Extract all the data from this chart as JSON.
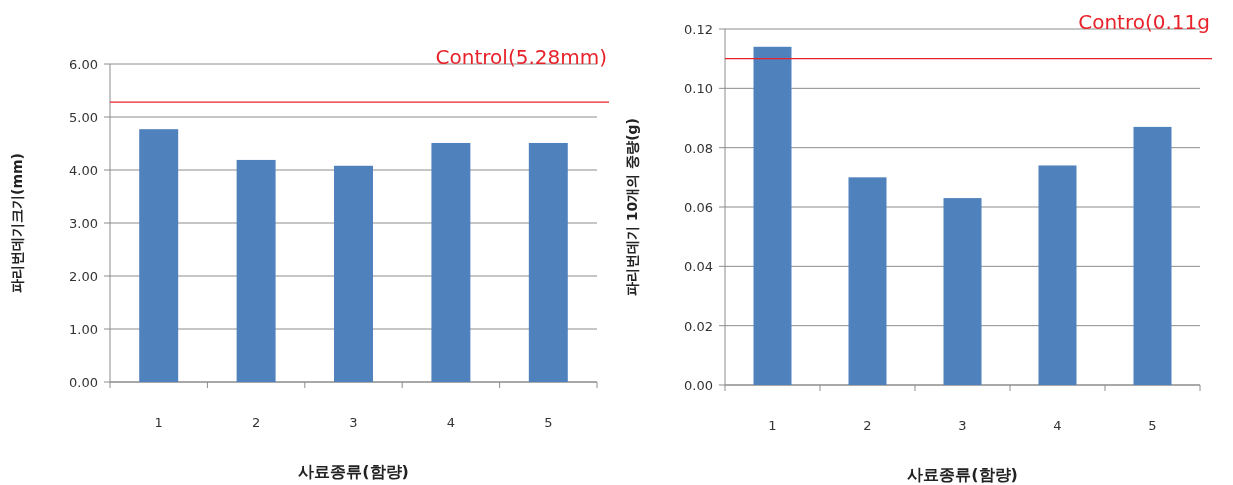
{
  "chart_data": [
    {
      "type": "bar",
      "xlabel": "사료종류(함량)",
      "ylabel": "파리번데기크기(mm)",
      "categories": [
        "1",
        "2",
        "3",
        "4",
        "5"
      ],
      "values": [
        4.77,
        4.19,
        4.08,
        4.51,
        4.51
      ],
      "color": "#4f81bd",
      "ylim": [
        0,
        6
      ],
      "yticks": [
        {
          "value": 0,
          "label": "0.00"
        },
        {
          "value": 1,
          "label": "1.00"
        },
        {
          "value": 2,
          "label": "2.00"
        },
        {
          "value": 3,
          "label": "3.00"
        },
        {
          "value": 4,
          "label": "4.00"
        },
        {
          "value": 5,
          "label": "5.00"
        },
        {
          "value": 6,
          "label": "6.00"
        }
      ],
      "grid": "y",
      "ref_lines": [
        {
          "axis": "y",
          "value": 5.28,
          "label": "Control(5.28mm)",
          "color": "#e8222a"
        }
      ]
    },
    {
      "type": "bar",
      "xlabel": "사료종류(함량)",
      "ylabel": "파리번데기 10개의 중량(g)",
      "categories": [
        "1",
        "2",
        "3",
        "4",
        "5"
      ],
      "values": [
        0.114,
        0.07,
        0.063,
        0.074,
        0.087
      ],
      "color": "#4f81bd",
      "ylim": [
        0,
        0.12
      ],
      "yticks": [
        {
          "value": 0,
          "label": "0.00"
        },
        {
          "value": 0.02,
          "label": "0.02"
        },
        {
          "value": 0.04,
          "label": "0.04"
        },
        {
          "value": 0.06,
          "label": "0.06"
        },
        {
          "value": 0.08,
          "label": "0.08"
        },
        {
          "value": 0.1,
          "label": "0.10"
        },
        {
          "value": 0.12,
          "label": "0.12"
        }
      ],
      "grid": "y",
      "ref_lines": [
        {
          "axis": "y",
          "value": 0.11,
          "label": "Contro(0.11g",
          "color": "#e8222a"
        }
      ]
    }
  ]
}
